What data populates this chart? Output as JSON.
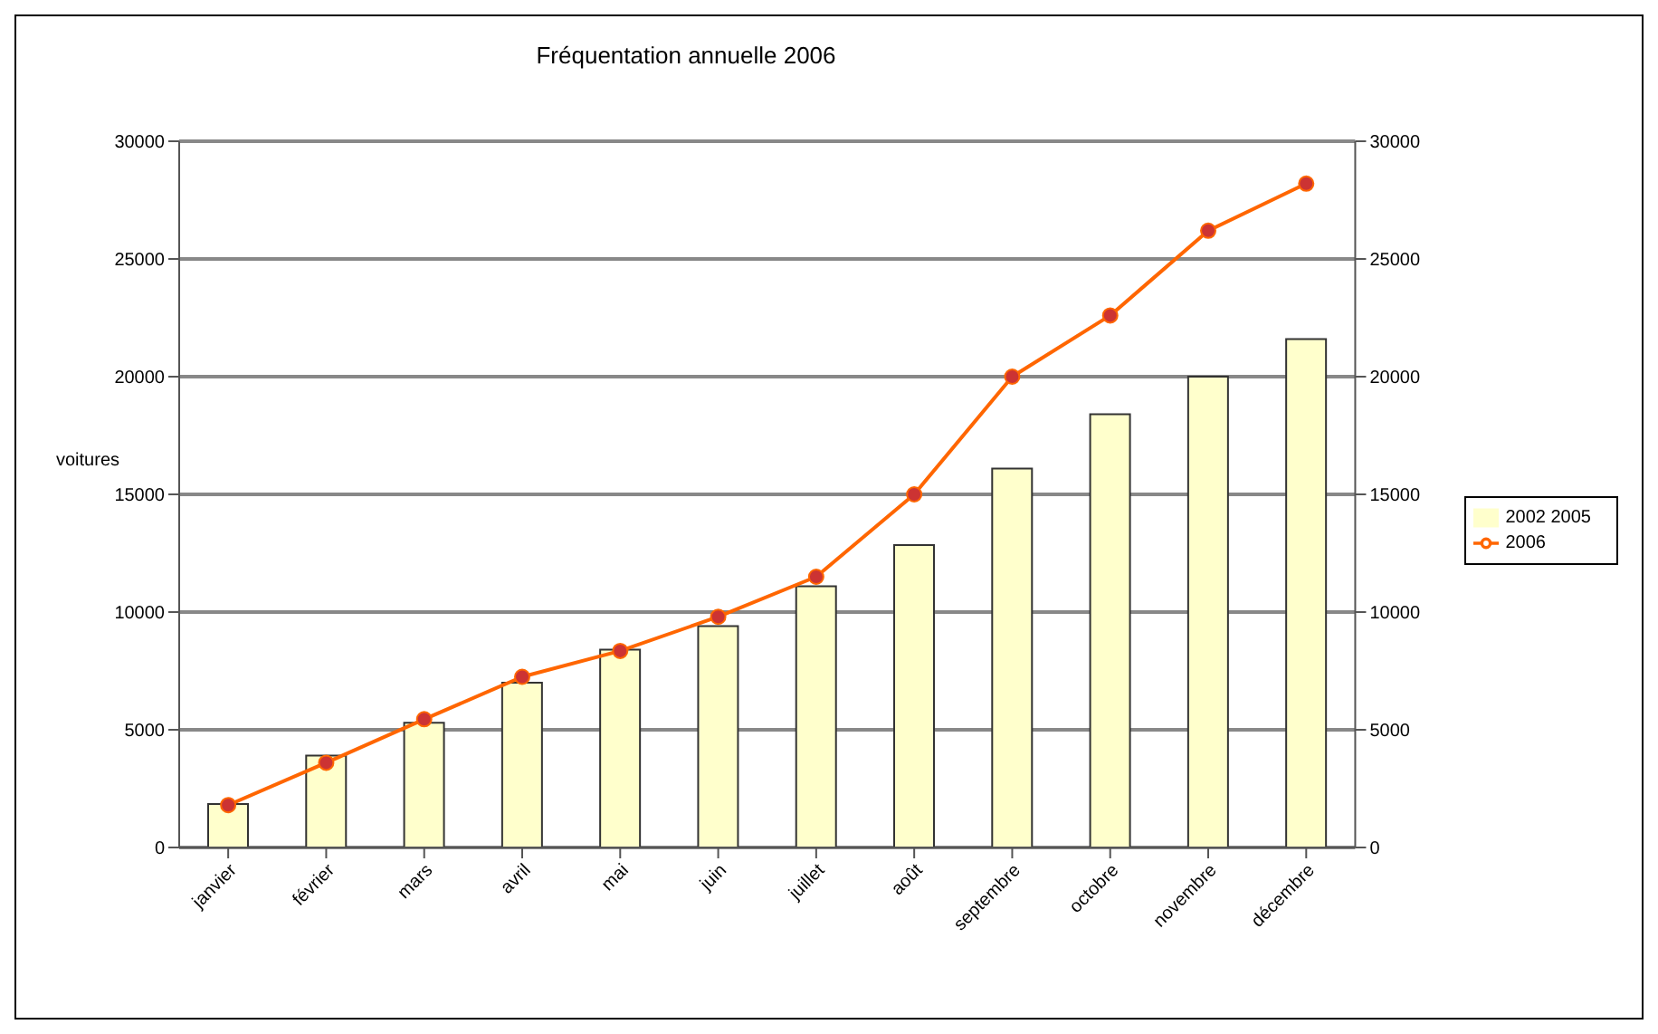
{
  "chart_data": {
    "type": "bar",
    "title": "Fréquentation annuelle 2006",
    "ylabel": "voitures",
    "categories": [
      "janvier",
      "février",
      "mars",
      "avril",
      "mai",
      "juin",
      "juillet",
      "août",
      "septembre",
      "octobre",
      "novembre",
      "décembre"
    ],
    "series": [
      {
        "name": "2002 2005",
        "color": "#ffffcc",
        "values": [
          1850,
          3900,
          5300,
          7000,
          8400,
          9400,
          11100,
          12850,
          16100,
          18400,
          20000,
          21600
        ]
      },
      {
        "name": "2006",
        "type": "line",
        "color": "#ff6600",
        "marker": "circle",
        "values": [
          1800,
          3600,
          5450,
          7250,
          8350,
          9800,
          11500,
          15000,
          20000,
          22600,
          26200,
          28200
        ]
      }
    ],
    "ylim": [
      0,
      30000
    ],
    "yticks": [
      0,
      5000,
      10000,
      15000,
      20000,
      25000,
      30000
    ],
    "y2lim": [
      0,
      30000
    ],
    "y2ticks": [
      0,
      5000,
      10000,
      15000,
      20000,
      25000,
      30000
    ],
    "grid": "y",
    "legend": "right"
  }
}
